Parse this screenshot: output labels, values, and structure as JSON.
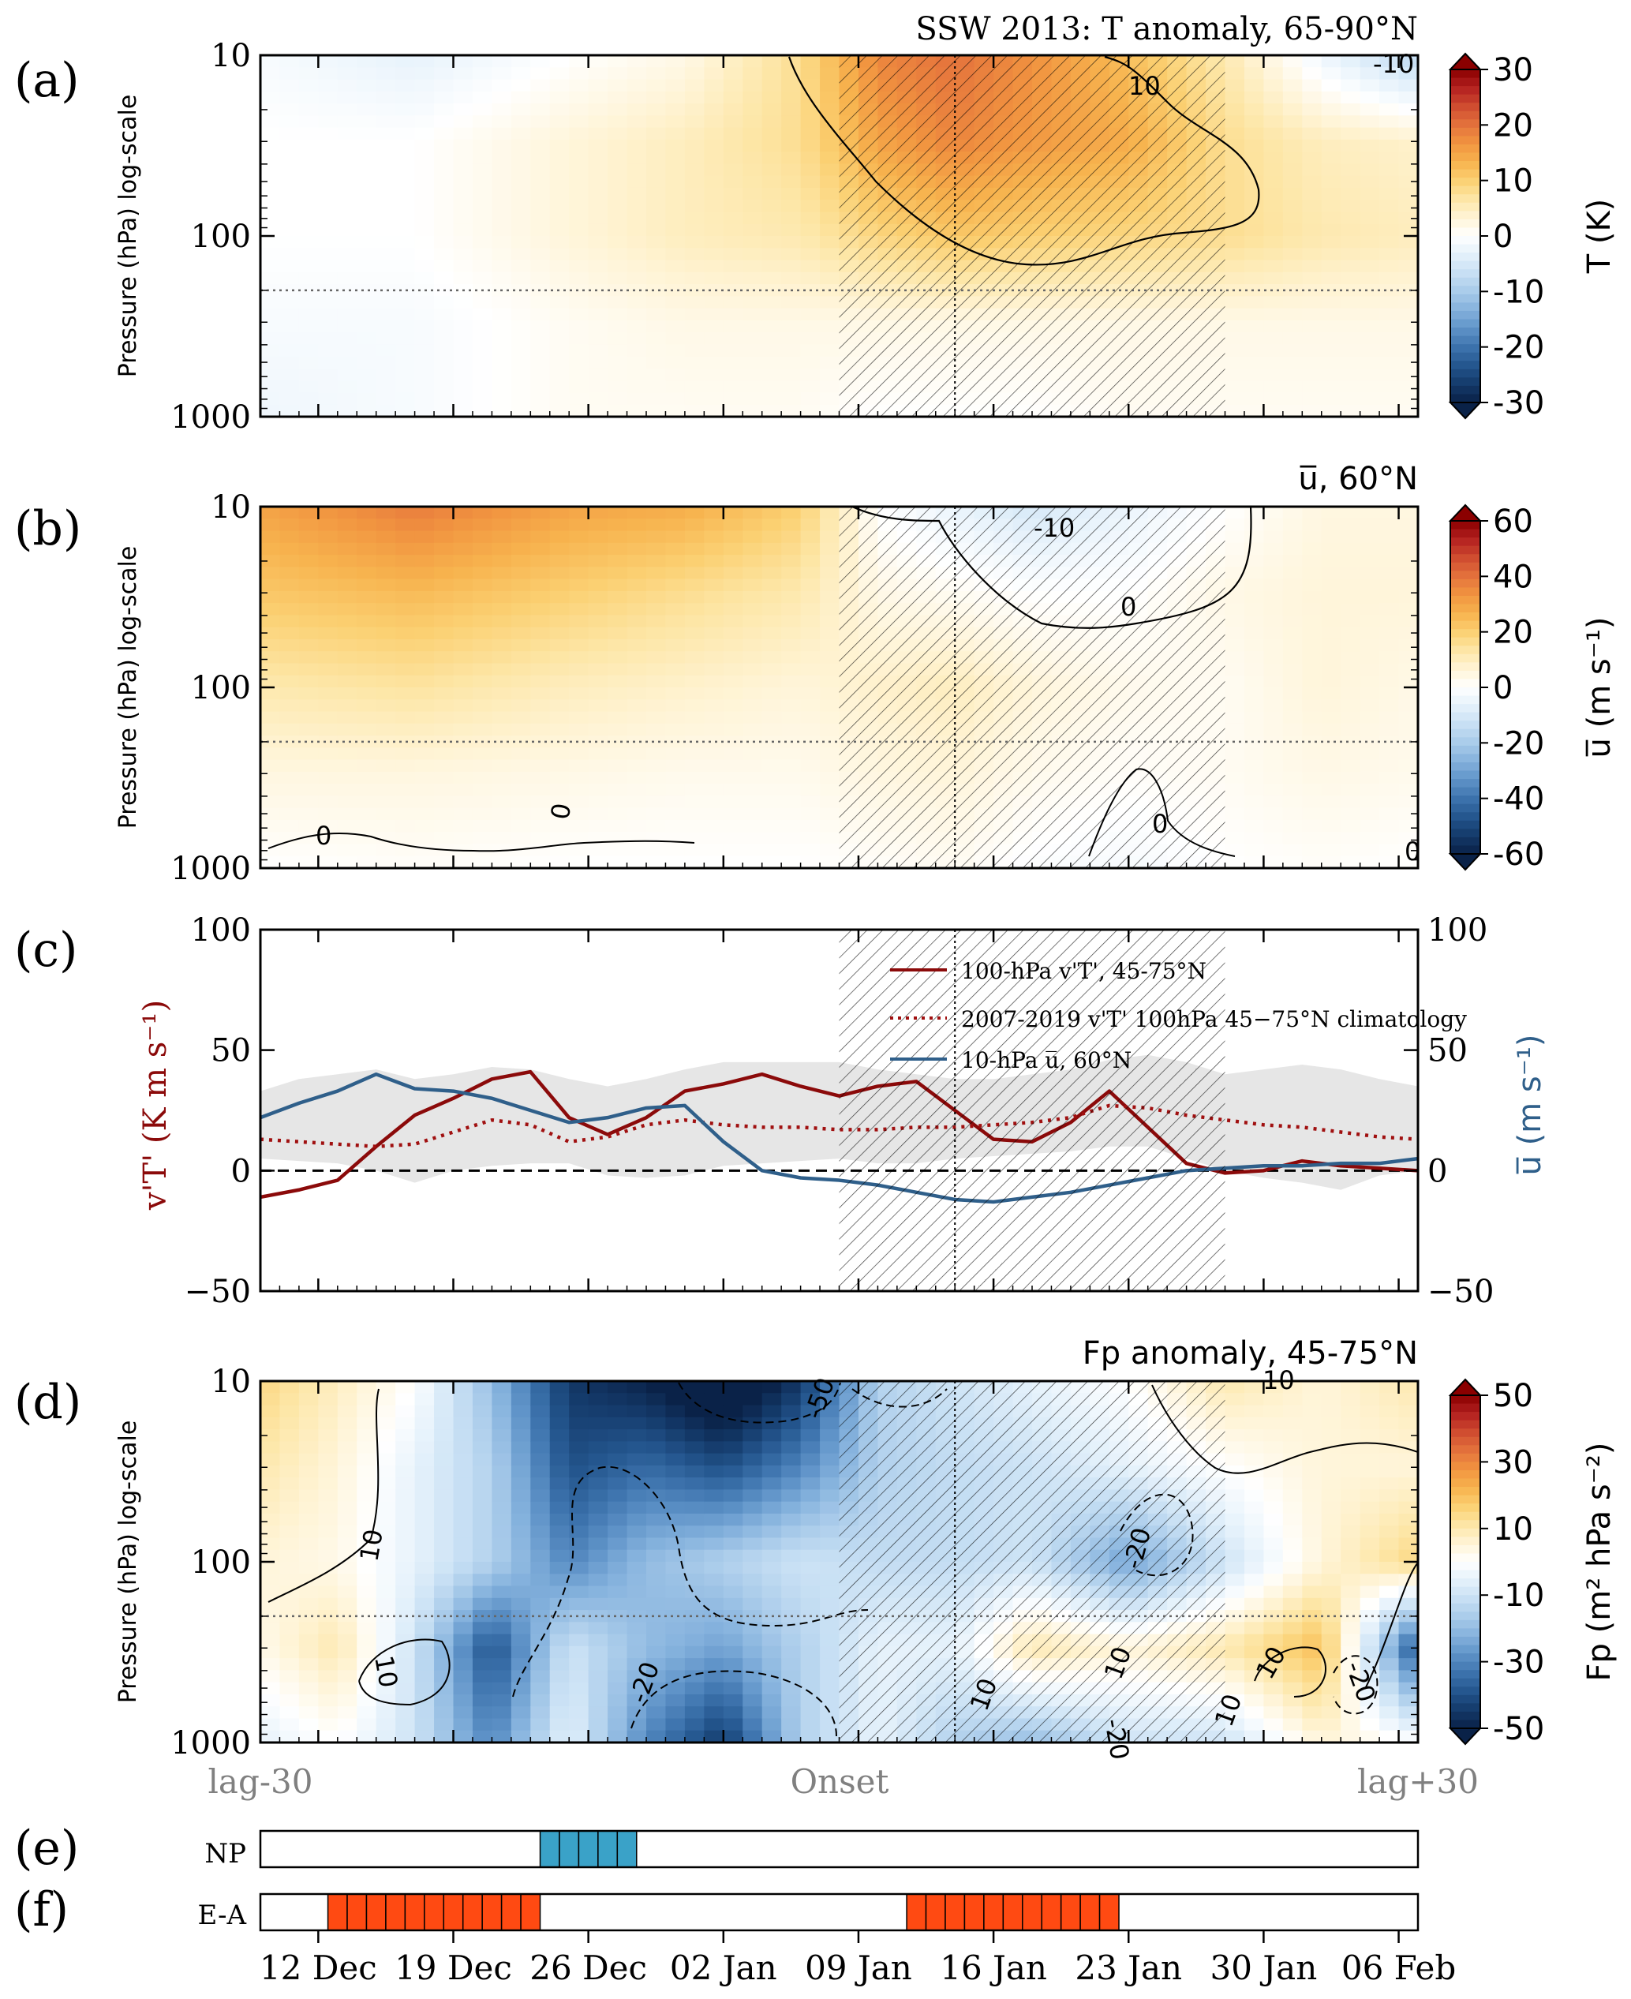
{
  "chart_data": [
    {
      "panel": "(a)",
      "type": "heatmap",
      "title": "SSW 2013: T anomaly, 65-90°N",
      "ylabel": "Pressure (hPa) log-scale",
      "yscale": "log",
      "ylim": [
        1000,
        10
      ],
      "yticks": [
        "10",
        "100",
        "1000"
      ],
      "colorbar": {
        "label": "T (K)",
        "ticks": [
          "30",
          "20",
          "10",
          "0",
          "-10",
          "-20",
          "-30"
        ],
        "range": [
          -30,
          30
        ]
      },
      "contour_labels": [
        "10",
        "-10"
      ],
      "dotted_pressure_hPa": 200,
      "zvalues_note_grid": {
        "days_from_onset": [
          -30,
          -22,
          -14,
          -8,
          -2,
          2,
          6,
          10,
          15,
          20,
          25,
          30
        ],
        "pressure_hPa": [
          10,
          30,
          100,
          300,
          1000
        ],
        "T_K": [
          [
            -1,
            -3,
            0,
            2,
            8,
            18,
            20,
            17,
            12,
            6,
            -2,
            -8
          ],
          [
            0,
            0,
            3,
            5,
            8,
            15,
            18,
            16,
            14,
            8,
            5,
            4
          ],
          [
            0,
            0,
            3,
            5,
            6,
            9,
            11,
            10,
            9,
            8,
            6,
            5
          ],
          [
            -1,
            -1,
            1,
            2,
            2,
            2,
            2,
            2,
            2,
            2,
            2,
            2
          ],
          [
            -2,
            -1,
            1,
            1,
            1,
            0,
            0,
            0,
            1,
            1,
            1,
            1
          ]
        ]
      }
    },
    {
      "panel": "(b)",
      "type": "heatmap",
      "title": "u̅, 60°N",
      "ylabel": "Pressure (hPa) log-scale",
      "yscale": "log",
      "ylim": [
        1000,
        10
      ],
      "yticks": [
        "10",
        "100",
        "1000"
      ],
      "colorbar": {
        "label": "u̅ (m s⁻¹)",
        "ticks": [
          "60",
          "40",
          "20",
          "0",
          "-20",
          "-40",
          "-60"
        ],
        "range": [
          -60,
          60
        ]
      },
      "contour_labels": [
        "-10",
        "0",
        "0",
        "0",
        "0",
        "0"
      ],
      "dotted_pressure_hPa": 200,
      "zvalues_note_grid": {
        "days_from_onset": [
          -30,
          -22,
          -14,
          -8,
          -2,
          2,
          6,
          10,
          15,
          20,
          25,
          30
        ],
        "pressure_hPa": [
          10,
          30,
          100,
          300,
          1000
        ],
        "u_ms": [
          [
            30,
            38,
            30,
            28,
            20,
            0,
            -5,
            -10,
            -5,
            0,
            5,
            5
          ],
          [
            22,
            25,
            20,
            16,
            12,
            4,
            2,
            0,
            0,
            4,
            6,
            6
          ],
          [
            12,
            14,
            10,
            8,
            6,
            8,
            10,
            6,
            3,
            2,
            6,
            4
          ],
          [
            5,
            5,
            4,
            3,
            3,
            5,
            6,
            3,
            1,
            2,
            4,
            3
          ],
          [
            0,
            1,
            0,
            0,
            0,
            1,
            2,
            -1,
            -2,
            0,
            1,
            0
          ]
        ]
      }
    },
    {
      "panel": "(c)",
      "type": "line",
      "ylabel_left": "v'T' (K m s⁻¹)",
      "ylabel_right": "u̅ (m s⁻¹)",
      "ylim": [
        -50,
        100
      ],
      "yticks": [
        "100",
        "50",
        "0",
        "−50"
      ],
      "legend": [
        "100-hPa v'T', 45-75°N",
        "2007-2019 v'T' 100hPa 45−75°N climatology",
        "10-hPa u̅, 60°N"
      ],
      "x_days_from_onset": [
        -30,
        -28,
        -26,
        -24,
        -22,
        -20,
        -18,
        -16,
        -14,
        -12,
        -10,
        -8,
        -6,
        -4,
        -2,
        0,
        2,
        4,
        6,
        8,
        10,
        12,
        14,
        16,
        18,
        20,
        22,
        24,
        26,
        28,
        30
      ],
      "series": [
        {
          "name": "100-hPa v'T', 45-75°N",
          "color": "#8b0a0a",
          "values": [
            -11,
            -8,
            -4,
            10,
            23,
            30,
            38,
            41,
            22,
            15,
            22,
            33,
            36,
            40,
            35,
            31,
            35,
            37,
            25,
            13,
            12,
            20,
            33,
            18,
            3,
            -1,
            0,
            4,
            2,
            1,
            0
          ]
        },
        {
          "name": "2007-2019 climatology",
          "color": "#a01010",
          "values": [
            13,
            12,
            11,
            10,
            11,
            16,
            21,
            19,
            12,
            14,
            19,
            21,
            19,
            18,
            18,
            17,
            17,
            18,
            18,
            19,
            20,
            22,
            27,
            26,
            23,
            21,
            19,
            18,
            16,
            14,
            13
          ]
        },
        {
          "name": "10-hPa u̅, 60°N",
          "color": "#2f5f8a",
          "values": [
            22,
            28,
            33,
            40,
            34,
            33,
            30,
            25,
            20,
            22,
            26,
            27,
            12,
            0,
            -3,
            -4,
            -6,
            -9,
            -12,
            -13,
            -11,
            -9,
            -6,
            -3,
            0,
            1,
            2,
            2,
            3,
            3,
            5
          ]
        }
      ],
      "shading_band_note": {
        "lower": [
          5,
          4,
          3,
          0,
          -5,
          0,
          2,
          3,
          3,
          -2,
          -3,
          -2,
          2,
          3,
          4,
          5,
          3,
          3,
          5,
          6,
          7,
          8,
          10,
          10,
          5,
          0,
          -3,
          -5,
          -8,
          -2,
          0
        ],
        "upper": [
          33,
          38,
          40,
          42,
          38,
          40,
          43,
          42,
          38,
          35,
          38,
          42,
          45,
          45,
          45,
          45,
          42,
          40,
          38,
          38,
          40,
          42,
          46,
          48,
          45,
          40,
          42,
          44,
          42,
          38,
          35
        ]
      }
    },
    {
      "panel": "(d)",
      "type": "heatmap",
      "title": "Fp anomaly, 45-75°N",
      "ylabel": "Pressure (hPa) log-scale",
      "yscale": "log",
      "ylim": [
        1000,
        10
      ],
      "yticks": [
        "10",
        "100",
        "1000"
      ],
      "colorbar": {
        "label": "Fp (m² hPa s⁻²)",
        "ticks": [
          "50",
          "30",
          "10",
          "-10",
          "-30",
          "-50"
        ],
        "range": [
          -50,
          50
        ]
      },
      "contour_labels": [
        "10",
        "10",
        "-20",
        "-20",
        "-20",
        "10",
        "10",
        "10",
        "10",
        "-20",
        "10",
        "-50"
      ],
      "dotted_pressure_hPa": 200,
      "zvalues_note_grid": {
        "days_from_onset": [
          -30,
          -26,
          -22,
          -18,
          -14,
          -10,
          -6,
          -2,
          2,
          6,
          10,
          15,
          20,
          25,
          30
        ],
        "pressure_hPa": [
          10,
          30,
          100,
          300,
          1000
        ],
        "Fp": [
          [
            15,
            8,
            0,
            -20,
            -45,
            -50,
            -60,
            -45,
            -15,
            -10,
            -5,
            0,
            10,
            5,
            10
          ],
          [
            10,
            5,
            -5,
            -15,
            -40,
            -35,
            -40,
            -30,
            -15,
            -12,
            -10,
            -5,
            0,
            5,
            5
          ],
          [
            5,
            3,
            -5,
            -15,
            -30,
            -20,
            -15,
            -10,
            -12,
            -12,
            -10,
            -25,
            -10,
            5,
            15
          ],
          [
            3,
            10,
            -10,
            -40,
            -10,
            -20,
            -25,
            -15,
            -5,
            -5,
            10,
            5,
            10,
            20,
            -40
          ],
          [
            -5,
            0,
            -10,
            -30,
            -5,
            -30,
            -45,
            -15,
            -5,
            -15,
            -20,
            -10,
            -10,
            5,
            0
          ]
        ]
      }
    }
  ],
  "panel_labels": [
    "(a)",
    "(b)",
    "(c)",
    "(d)",
    "(e)",
    "(f)"
  ],
  "lag_labels": {
    "left": "lag-30",
    "center": "Onset",
    "right": "lag+30"
  },
  "xaxis": {
    "ticks": [
      "12 Dec",
      "19 Dec",
      "26 Dec",
      "02 Jan",
      "09 Jan",
      "16 Jan",
      "23 Jan",
      "30 Jan",
      "06 Feb"
    ]
  },
  "event_bars": [
    {
      "panel": "(e)",
      "label": "NP",
      "color": "#3aa2c8",
      "active_days_from_onset": [
        -15,
        -14,
        -13,
        -12,
        -11
      ]
    },
    {
      "panel": "(f)",
      "label": "E-A",
      "color": "#ff4a12",
      "active_days_from_onset": [
        -26,
        -25,
        -24,
        -23,
        -22,
        -21,
        -20,
        -19,
        -18,
        -17,
        -16,
        4,
        5,
        6,
        7,
        8,
        9,
        10,
        11,
        12,
        13,
        14
      ]
    }
  ],
  "hatched_period_days_from_onset": [
    0,
    20
  ],
  "vertical_dotted_line_day": 6,
  "colors": {
    "warm": [
      "#ffffff",
      "#fff4d6",
      "#fde6a6",
      "#fbd072",
      "#f7b34e",
      "#f19440",
      "#e4723c",
      "#cf4c30",
      "#b32020",
      "#8b0000"
    ],
    "cold": [
      "#ffffff",
      "#e4f1fb",
      "#c8e0f4",
      "#a9cbea",
      "#85b2dd",
      "#5f93c8",
      "#3d73ad",
      "#24568e",
      "#143a6a",
      "#0a2248"
    ],
    "axes": "#000000",
    "lag_text": "#808080"
  }
}
